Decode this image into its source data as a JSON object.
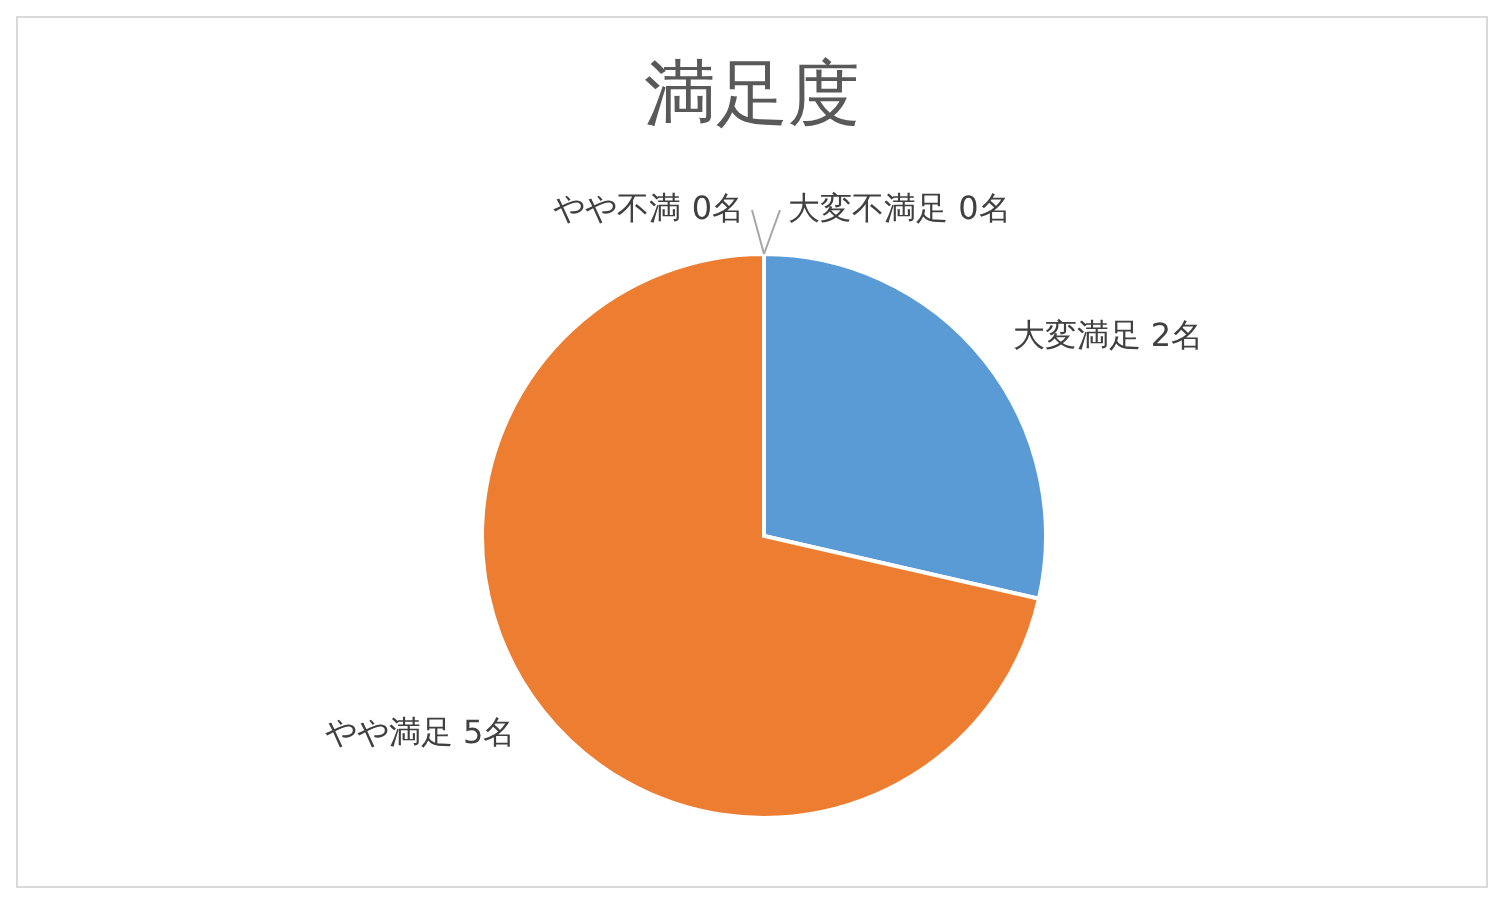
{
  "chart_data": {
    "type": "pie",
    "title": "満足度",
    "categories": [
      "大変満足",
      "やや満足",
      "やや不満",
      "大変不満足"
    ],
    "values": [
      2,
      5,
      0,
      0
    ],
    "value_labels": [
      "2名",
      "5名",
      "0名",
      "0名"
    ],
    "colors": [
      "#5b9bd5",
      "#ed7d31",
      "#a5a5a5",
      "#ffc000"
    ],
    "legend": false
  }
}
